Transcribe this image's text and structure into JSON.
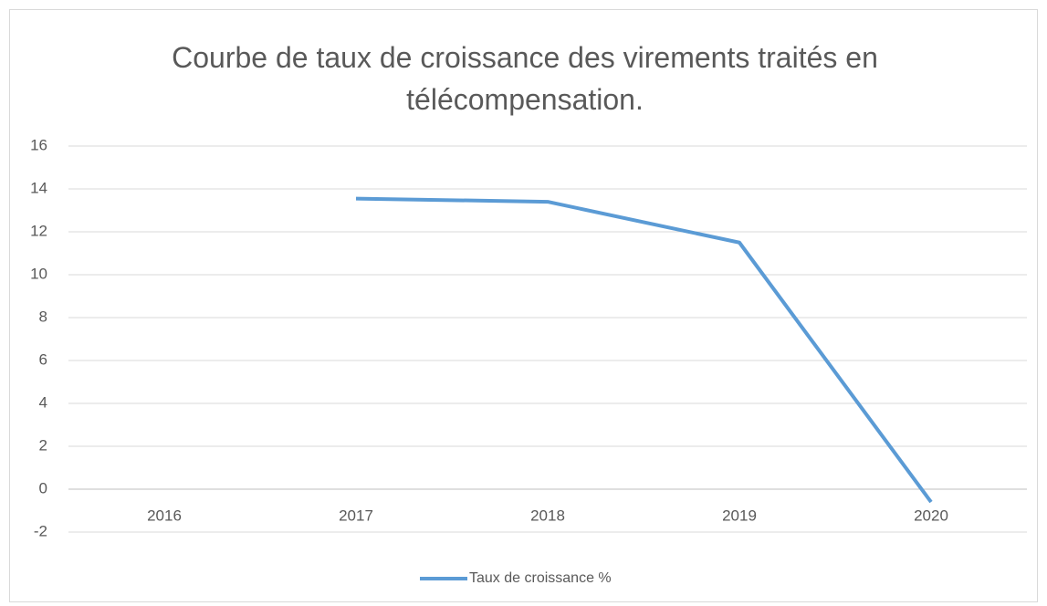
{
  "chart_data": {
    "type": "line",
    "title": "Courbe de taux de croissance des virements traités en télécompensation.",
    "categories": [
      "2016",
      "2017",
      "2018",
      "2019",
      "2020"
    ],
    "series": [
      {
        "name": "Taux de croissance %",
        "color": "#5b9bd5",
        "values": [
          null,
          13.55,
          13.4,
          11.5,
          -0.6
        ]
      }
    ],
    "ylim": [
      -2,
      16
    ],
    "yticks": [
      -2,
      0,
      2,
      4,
      6,
      8,
      10,
      12,
      14,
      16
    ],
    "grid": true,
    "legend": "bottom"
  }
}
